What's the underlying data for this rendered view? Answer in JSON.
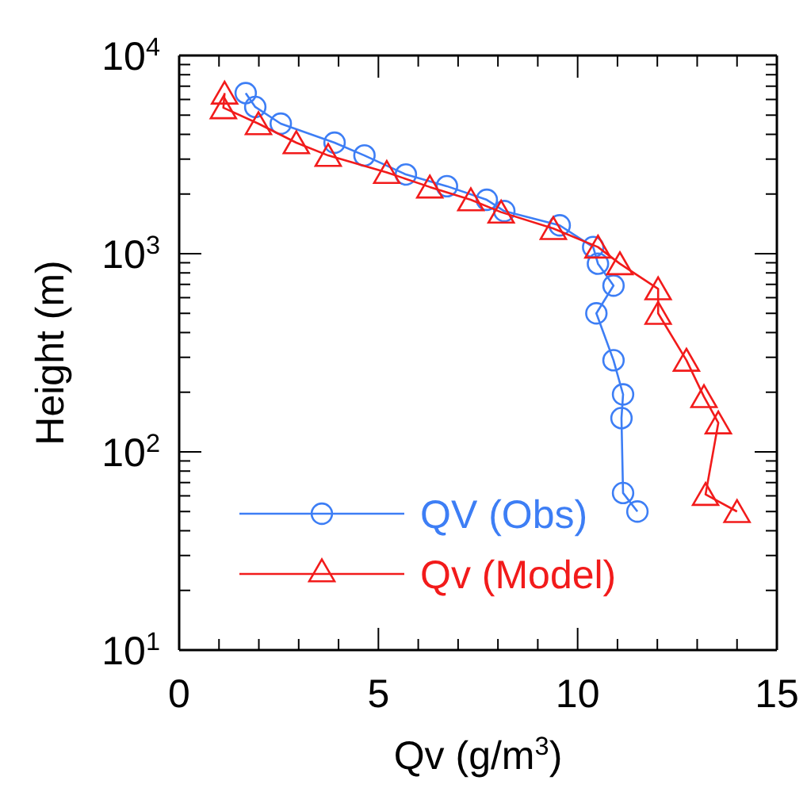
{
  "chart_data": {
    "type": "line",
    "xlabel": "Qv (g/m$^{3}$)",
    "ylabel": "Height (m)",
    "log": "y",
    "xlim": [
      0,
      15
    ],
    "xticks": [
      0,
      5,
      10,
      15
    ],
    "ylim": [
      10,
      10000
    ],
    "yticks": [
      {
        "value": 10,
        "label": "10$^{1}$"
      },
      {
        "value": 100,
        "label": "10$^{2}$"
      },
      {
        "value": 1000,
        "label": "10$^{3}$"
      },
      {
        "value": 10000,
        "label": "10$^{4}$"
      }
    ],
    "grid": false,
    "legend": "bottom left",
    "line_style": "solid",
    "series": [
      {
        "name": "QV (Obs)",
        "color": "#3d7ef5",
        "marker": "circle",
        "x": [
          1.67,
          1.91,
          2.55,
          3.9,
          4.65,
          5.69,
          6.72,
          7.72,
          8.16,
          9.55,
          10.39,
          10.51,
          10.9,
          10.47,
          10.9,
          11.14,
          11.1,
          11.14,
          11.5
        ],
        "values": [
          6460,
          5500,
          4530,
          3630,
          3130,
          2510,
          2190,
          1870,
          1640,
          1390,
          1080,
          890,
          690,
          500,
          290,
          195,
          148,
          62,
          50
        ]
      },
      {
        "name": "Qv (Model)",
        "color": "#f21b1b",
        "marker": "triangle",
        "x": [
          1.14,
          1.11,
          1.99,
          2.94,
          3.74,
          5.21,
          6.29,
          7.32,
          8.08,
          9.39,
          10.51,
          11.06,
          12.02,
          12.02,
          12.73,
          13.17,
          13.53,
          13.21,
          14.0
        ],
        "values": [
          6460,
          5450,
          4530,
          3630,
          3130,
          2570,
          2170,
          1870,
          1620,
          1340,
          1080,
          890,
          665,
          500,
          290,
          190,
          140,
          61,
          50
        ]
      }
    ]
  }
}
